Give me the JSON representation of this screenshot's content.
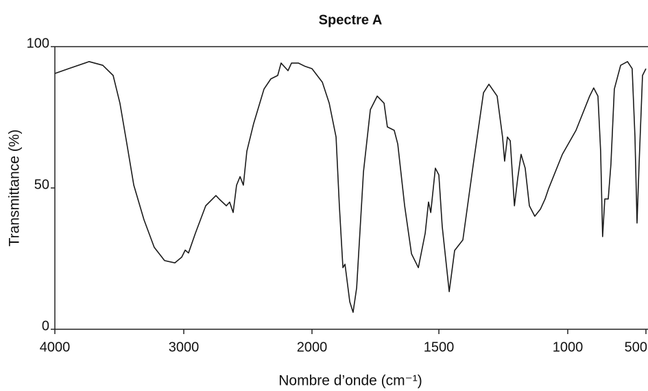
{
  "chart_data": {
    "type": "line",
    "title": "Spectre A",
    "x_label": "Nombre d’onde (cm⁻¹)",
    "y_label": "Transmittance (%)",
    "color": "#1a1a1a",
    "xlim": [
      4000,
      500
    ],
    "xticks": [
      4000,
      3000,
      2000,
      1500,
      1000,
      500
    ],
    "ylim": [
      0,
      100
    ],
    "yticks": [
      0,
      50,
      100
    ],
    "grid": false,
    "x": [
      4000,
      3894,
      3734,
      3628,
      3548,
      3495,
      3441,
      3388,
      3309,
      3229,
      3149,
      3069,
      3016,
      2989,
      2963,
      2909,
      2829,
      2749,
      2722,
      2668,
      2642,
      2615,
      2588,
      2561,
      2535,
      2508,
      2455,
      2374,
      2321,
      2267,
      2241,
      2187,
      2160,
      2107,
      2053,
      2000,
      1959,
      1932,
      1905,
      1892,
      1878,
      1870,
      1851,
      1838,
      1824,
      1797,
      1770,
      1743,
      1716,
      1703,
      1676,
      1662,
      1635,
      1608,
      1581,
      1554,
      1541,
      1532,
      1514,
      1500,
      1487,
      1460,
      1439,
      1407,
      1367,
      1327,
      1306,
      1274,
      1253,
      1245,
      1234,
      1223,
      1207,
      1194,
      1181,
      1165,
      1149,
      1128,
      1106,
      1088,
      1074,
      1021,
      947,
      860,
      834,
      807,
      790,
      777,
      763,
      741,
      724,
      702,
      662,
      618,
      588,
      570,
      557,
      544,
      522,
      500
    ],
    "values": [
      90.5,
      92.2,
      94.7,
      93.4,
      89.8,
      80,
      65.5,
      51,
      38.8,
      29,
      24.3,
      23.5,
      25.5,
      28,
      27,
      34,
      43.7,
      47.3,
      46,
      43.7,
      45,
      41.3,
      51,
      54,
      51,
      63,
      72.8,
      85,
      88.6,
      89.8,
      94.2,
      91.5,
      94.2,
      94.2,
      93,
      92.2,
      87.4,
      80,
      68,
      43.7,
      21.8,
      23,
      9.7,
      6,
      14.6,
      55.8,
      77.7,
      82.5,
      80,
      71.6,
      70.4,
      65.5,
      43.7,
      26.7,
      21.8,
      34,
      45,
      41.3,
      57,
      54.6,
      36.4,
      13.3,
      27.9,
      31.6,
      58,
      83.7,
      86.7,
      82.5,
      68,
      59.5,
      68,
      66.7,
      43.7,
      53.4,
      61.9,
      57,
      43.7,
      40,
      42.5,
      46.1,
      49.8,
      61.9,
      70.4,
      82.5,
      85.4,
      82.5,
      63.1,
      32.8,
      46.1,
      46.1,
      58.3,
      85,
      93.4,
      94.7,
      92.2,
      68,
      37.6,
      58.3,
      89.8,
      92.2
    ]
  }
}
